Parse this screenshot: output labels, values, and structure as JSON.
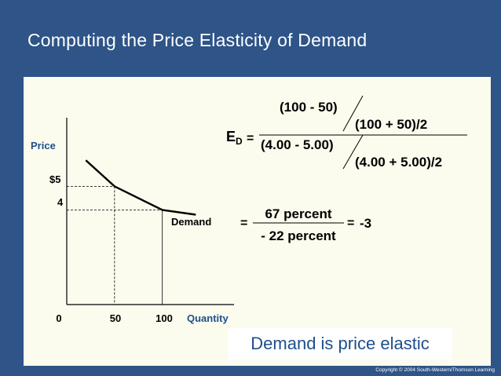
{
  "slide": {
    "title": "Computing the Price Elasticity of Demand",
    "conclusion": "Demand is price elastic",
    "copyright": "Copyright © 2004  South-Western/Thomson Learning"
  },
  "equation": {
    "lhs_E": "E",
    "lhs_sub": "D",
    "eq_sign": "=",
    "num_top": "(100 - 50)",
    "num_bottom": "(100 + 50)/2",
    "den_top": "(4.00 - 5.00)",
    "den_bottom": "(4.00 + 5.00)/2",
    "eq2_sign": "=",
    "frac2_top": "67 percent",
    "frac2_bottom": "- 22 percent",
    "eq3_sign": "=",
    "result": "-3"
  },
  "chart_data": {
    "type": "line",
    "ylabel": "Price",
    "xlabel": "Quantity",
    "x_tick_labels": [
      "0",
      "50",
      "100"
    ],
    "y_tick_labels": [
      "$5",
      "4"
    ],
    "series": [
      {
        "name": "Demand",
        "x": [
          20,
          50,
          100,
          135
        ],
        "y": [
          6.1,
          5,
          4,
          3.8
        ]
      }
    ],
    "annotations": [
      {
        "x": 50,
        "y": 5,
        "style": "dashed guide"
      },
      {
        "x": 100,
        "y": 4,
        "style": "dashed/solid guide"
      }
    ],
    "xlim": [
      0,
      175
    ],
    "ylim": [
      0,
      7.9
    ],
    "colors": {
      "axis": "#000000",
      "curve": "#000000",
      "label_blue": "#1f4e8a"
    }
  }
}
